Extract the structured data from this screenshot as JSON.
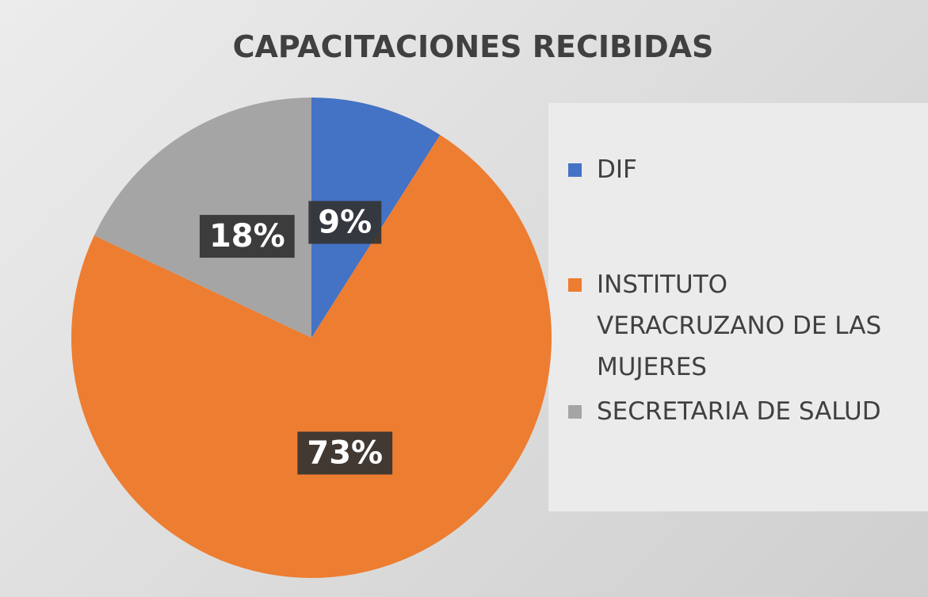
{
  "chart_data": {
    "type": "pie",
    "title": "CAPACITACIONES RECIBIDAS",
    "categories": [
      "DIF",
      "INSTITUTO VERACRUZANO DE LAS MUJERES",
      "SECRETARIA DE SALUD"
    ],
    "values": [
      9,
      73,
      18
    ],
    "value_labels": [
      "9%",
      "73%",
      "18%"
    ],
    "colors": [
      "#4472c4",
      "#ed7d31",
      "#a5a5a5"
    ],
    "legend": "right"
  }
}
